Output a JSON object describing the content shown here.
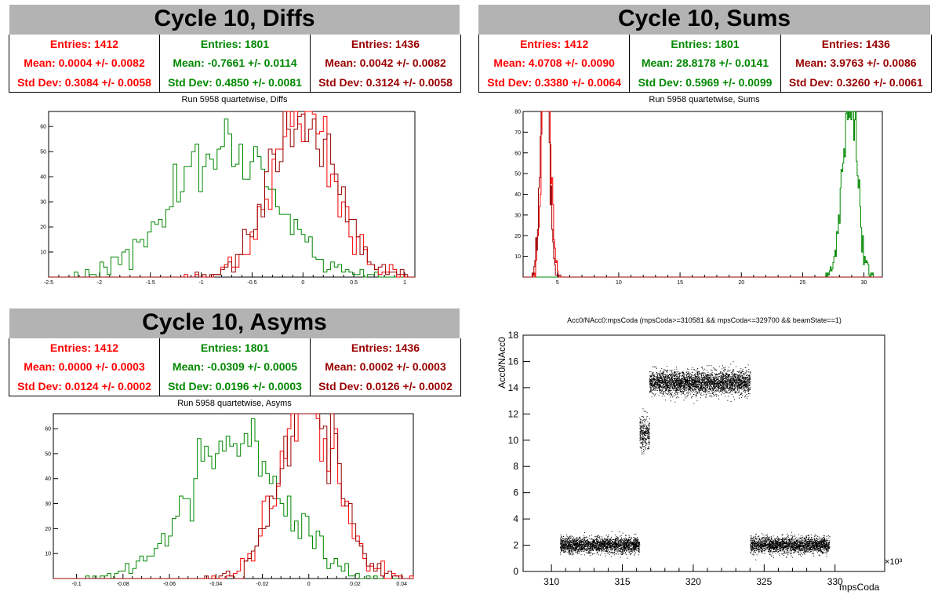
{
  "colors": {
    "red": "#ff0000",
    "green": "#008800",
    "darkred": "#990000",
    "title_bg": "#b3b3b3"
  },
  "panels": [
    {
      "title": "Cycle 10, Diffs",
      "stats": [
        {
          "entries": "Entries: 1412",
          "mean": "Mean: 0.0004 +/- 0.0082",
          "std": "Std Dev: 0.3084 +/- 0.0058",
          "color": "#ff0000"
        },
        {
          "entries": "Entries: 1801",
          "mean": "Mean: -0.7661 +/- 0.0114",
          "std": "Std Dev: 0.4850 +/- 0.0081",
          "color": "#008800"
        },
        {
          "entries": "Entries: 1436",
          "mean": "Mean: 0.0042 +/- 0.0082",
          "std": "Std Dev: 0.3124 +/- 0.0058",
          "color": "#990000"
        }
      ],
      "subtitle": "Run 5958 quartetwise, Diffs"
    },
    {
      "title": "Cycle 10, Sums",
      "stats": [
        {
          "entries": "Entries: 1412",
          "mean": "Mean: 4.0708 +/- 0.0090",
          "std": "Std Dev: 0.3380 +/- 0.0064",
          "color": "#ff0000"
        },
        {
          "entries": "Entries: 1801",
          "mean": "Mean: 28.8178 +/- 0.0141",
          "std": "Std Dev: 0.5969 +/- 0.0099",
          "color": "#008800"
        },
        {
          "entries": "Entries: 1436",
          "mean": "Mean: 3.9763 +/- 0.0086",
          "std": "Std Dev: 0.3260 +/- 0.0061",
          "color": "#990000"
        }
      ],
      "subtitle": "Run 5958 quartetwise, Sums"
    },
    {
      "title": "Cycle 10, Asyms",
      "stats": [
        {
          "entries": "Entries: 1412",
          "mean": "Mean: 0.0000 +/- 0.0003",
          "std": "Std Dev: 0.0124 +/- 0.0002",
          "color": "#ff0000"
        },
        {
          "entries": "Entries: 1801",
          "mean": "Mean: -0.0309 +/- 0.0005",
          "std": "Std Dev: 0.0196 +/- 0.0003",
          "color": "#008800"
        },
        {
          "entries": "Entries: 1436",
          "mean": "Mean: 0.0002 +/- 0.0003",
          "std": "Std Dev: 0.0126 +/- 0.0002",
          "color": "#990000"
        }
      ],
      "subtitle": "Run 5958 quartetwise, Asyms"
    }
  ],
  "chart_data": [
    {
      "type": "histogram",
      "name": "diffs",
      "xlim": [
        -2.5,
        1.1
      ],
      "ylim": [
        0,
        66
      ],
      "xticks": [
        -2.5,
        -2,
        -1.5,
        -1,
        -0.5,
        0,
        0.5,
        1
      ],
      "yticks": [
        10,
        20,
        30,
        40,
        50,
        60
      ],
      "xtick_labels": [
        "-2.5",
        "-2",
        "-1.5",
        "-1",
        "-0.5",
        "0",
        "0.5",
        "1"
      ],
      "ytick_labels": [
        "10",
        "20",
        "30",
        "40",
        "50",
        "60"
      ],
      "bins": 100,
      "series": [
        {
          "color": "#008800",
          "entries": 1801,
          "mean": -0.7661,
          "std": 0.485
        },
        {
          "color": "#ff0000",
          "entries": 1412,
          "mean": 0.0004,
          "std": 0.3084
        },
        {
          "color": "#990000",
          "entries": 1436,
          "mean": 0.0042,
          "std": 0.3124
        }
      ]
    },
    {
      "type": "histogram",
      "name": "sums",
      "xlim": [
        2.2,
        31.5
      ],
      "ylim": [
        0,
        80
      ],
      "xticks": [
        5,
        10,
        15,
        20,
        25,
        30
      ],
      "yticks": [
        10,
        20,
        30,
        40,
        50,
        60,
        70,
        80
      ],
      "xtick_labels": [
        "5",
        "10",
        "15",
        "20",
        "25",
        "30"
      ],
      "ytick_labels": [
        "10",
        "20",
        "30",
        "40",
        "50",
        "60",
        "70",
        "80"
      ],
      "bins": 400,
      "series": [
        {
          "color": "#008800",
          "entries": 1801,
          "mean": 28.8178,
          "std": 0.5969
        },
        {
          "color": "#ff0000",
          "entries": 1412,
          "mean": 4.0708,
          "std": 0.338
        },
        {
          "color": "#990000",
          "entries": 1436,
          "mean": 3.9763,
          "std": 0.326
        }
      ]
    },
    {
      "type": "histogram",
      "name": "asyms",
      "xlim": [
        -0.11,
        0.045
      ],
      "ylim": [
        0,
        66
      ],
      "xticks": [
        -0.1,
        -0.08,
        -0.06,
        -0.04,
        -0.02,
        0,
        0.02,
        0.04
      ],
      "yticks": [
        10,
        20,
        30,
        40,
        50,
        60
      ],
      "xtick_labels": [
        "-0.1",
        "-0.08",
        "-0.06",
        "-0.04",
        "-0.02",
        "0",
        "0.02",
        "0.04"
      ],
      "ytick_labels": [
        "10",
        "20",
        "30",
        "40",
        "50",
        "60"
      ],
      "bins": 100,
      "series": [
        {
          "color": "#008800",
          "entries": 1801,
          "mean": -0.0309,
          "std": 0.0196
        },
        {
          "color": "#ff0000",
          "entries": 1412,
          "mean": 0.0,
          "std": 0.0124
        },
        {
          "color": "#990000",
          "entries": 1436,
          "mean": 0.0002,
          "std": 0.0126
        }
      ]
    },
    {
      "type": "scatter",
      "name": "acc0",
      "title": "Acc0/NAcc0:mpsCoda (mpsCoda>=310581 && mpsCoda<=329700 && beamState==1)",
      "xlabel": "mpsCoda",
      "ylabel": "Acc0/NAcc0",
      "exponent_label": "×10³",
      "xlim": [
        308.0,
        333.5
      ],
      "ylim": [
        0,
        18
      ],
      "xticks": [
        310,
        315,
        320,
        325,
        330
      ],
      "yticks": [
        0,
        2,
        4,
        6,
        8,
        10,
        12,
        14,
        16,
        18
      ],
      "xtick_labels": [
        "310",
        "315",
        "320",
        "325",
        "330"
      ],
      "ytick_labels": [
        "0",
        "2",
        "4",
        "6",
        "8",
        "10",
        "12",
        "14",
        "16",
        "18"
      ],
      "color": "#000000",
      "clusters": [
        {
          "x": [
            310.6,
            316.2
          ],
          "y_center": 2.0,
          "y_spread": 0.3,
          "count": 2200
        },
        {
          "x": [
            316.2,
            316.9
          ],
          "y_center": 10.5,
          "y_spread": 0.6,
          "count": 300
        },
        {
          "x": [
            316.9,
            324.0
          ],
          "y_center": 14.4,
          "y_spread": 0.45,
          "count": 3200
        },
        {
          "x": [
            324.0,
            329.6
          ],
          "y_center": 2.0,
          "y_spread": 0.3,
          "count": 2200
        }
      ]
    }
  ]
}
